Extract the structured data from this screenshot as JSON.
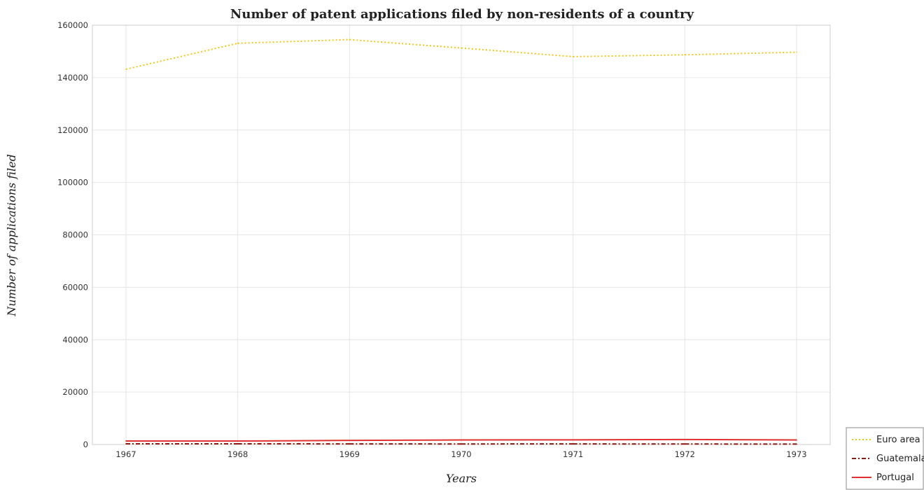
{
  "chart_data": {
    "type": "line",
    "title": "Number of patent applications filed by non-residents of a country",
    "xlabel": "Years",
    "ylabel": "Number of applications filed",
    "categories": [
      "1967",
      "1968",
      "1969",
      "1970",
      "1971",
      "1972",
      "1973"
    ],
    "ylim": [
      0,
      160000
    ],
    "yticks": [
      "0",
      "20000",
      "40000",
      "60000",
      "80000",
      "100000",
      "120000",
      "140000",
      "160000"
    ],
    "grid": true,
    "legend_position": "bottom-right",
    "series": [
      {
        "name": "Euro area",
        "color": "#f5c518",
        "style": "dotted",
        "values": [
          143200,
          153100,
          154500,
          151300,
          148000,
          148700,
          149700
        ]
      },
      {
        "name": "Guatemala",
        "color": "#8b1a10",
        "style": "dashdot",
        "values": [
          280,
          270,
          240,
          210,
          230,
          190,
          170
        ]
      },
      {
        "name": "Portugal",
        "color": "#e03030",
        "style": "solid",
        "values": [
          1350,
          1320,
          1560,
          1730,
          1780,
          1910,
          1720
        ]
      }
    ]
  }
}
